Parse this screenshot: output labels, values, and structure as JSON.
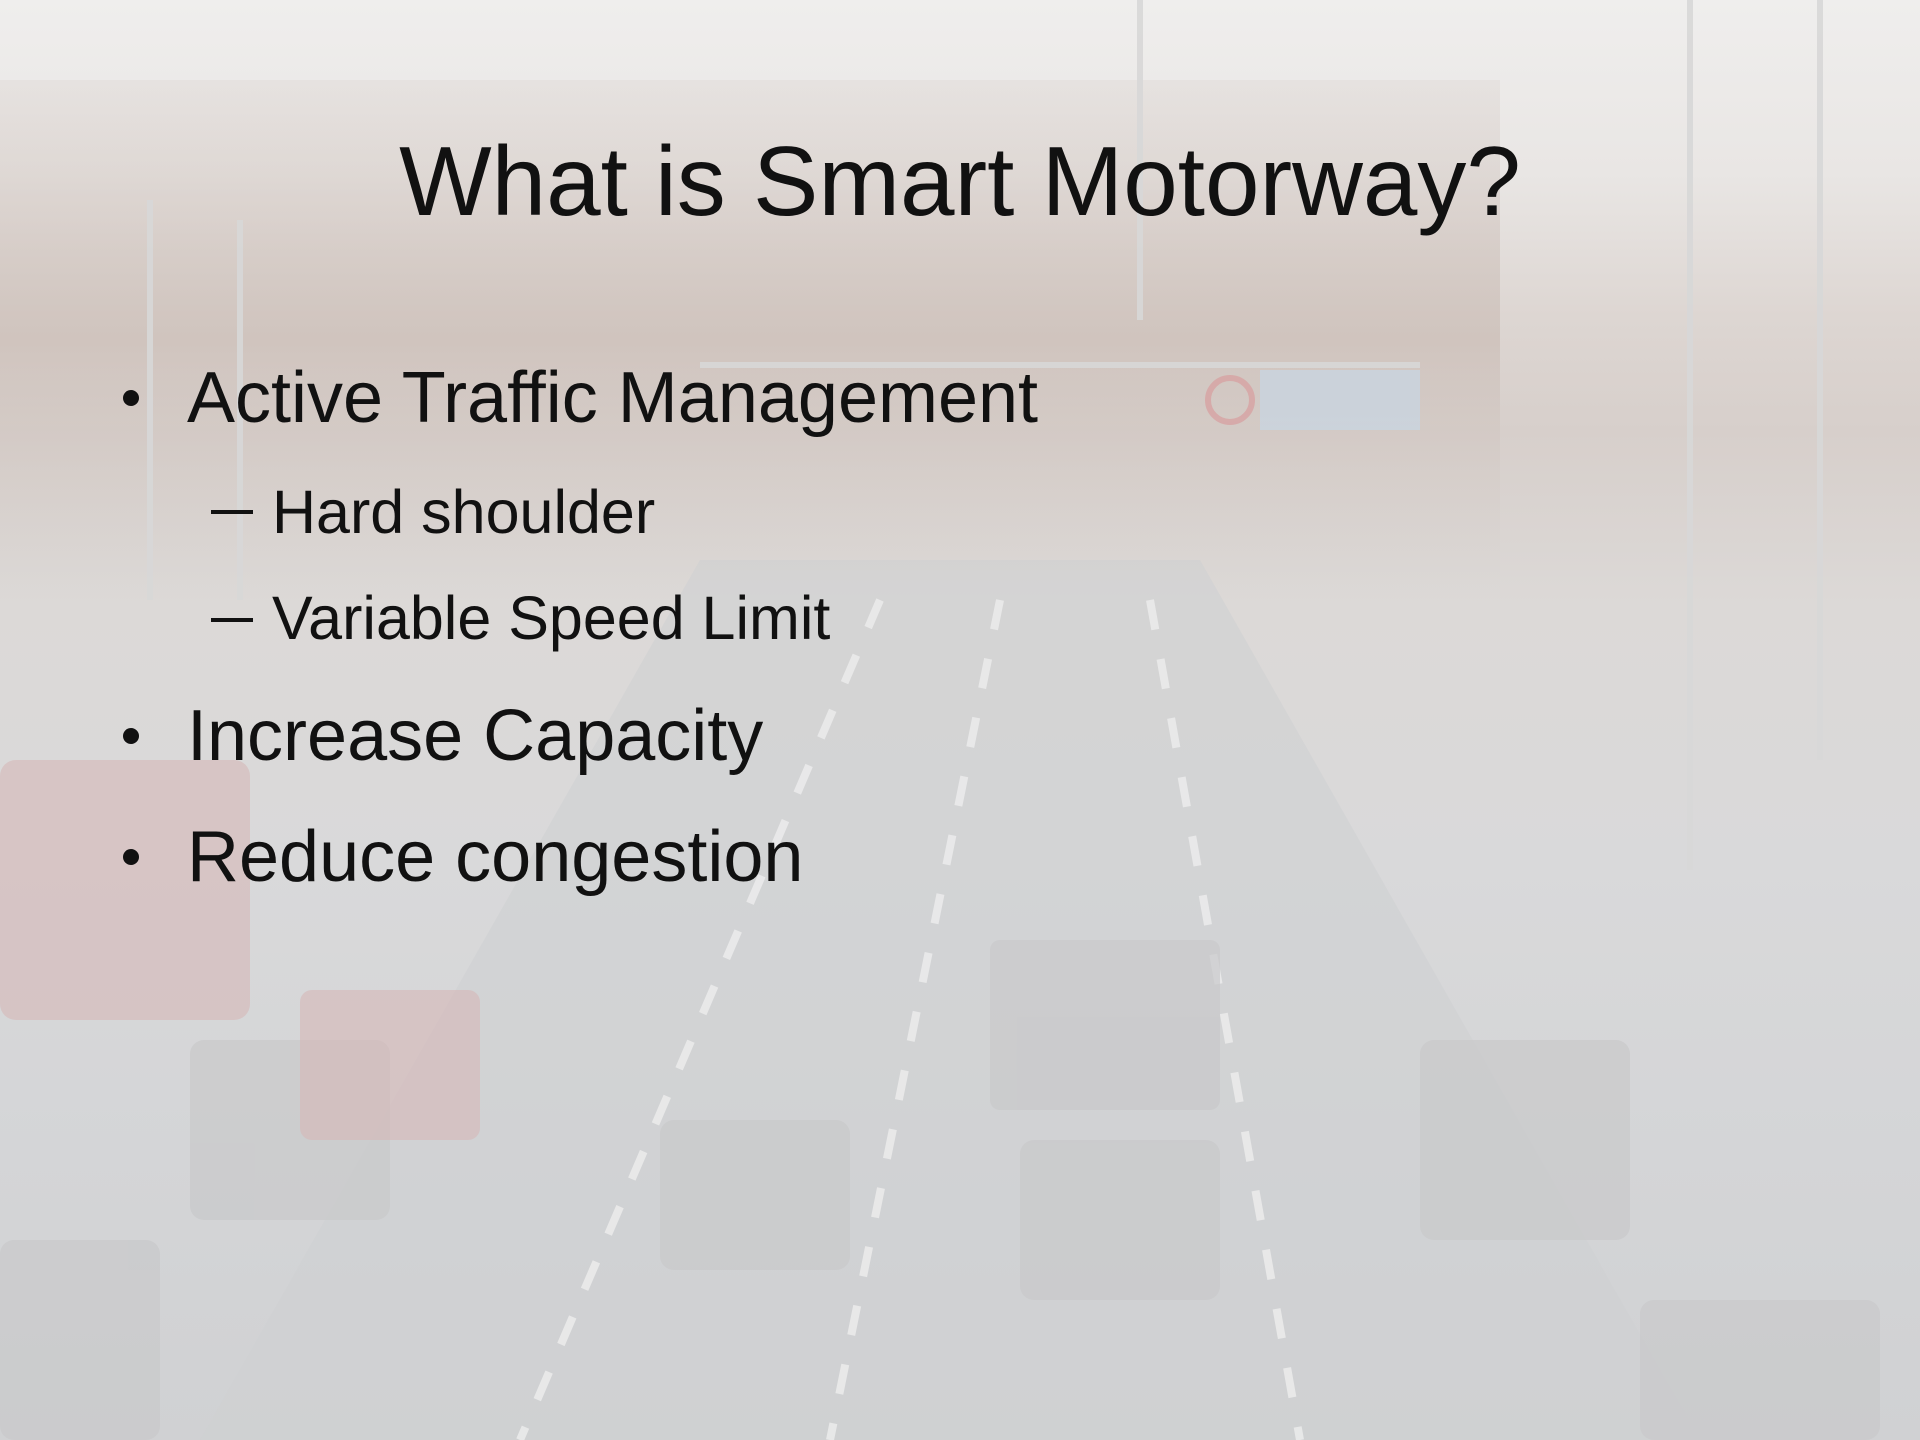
{
  "title": "What is Smart Motorway?",
  "bullets": [
    {
      "text": "Active Traffic Management",
      "sub": [
        "Hard shoulder",
        "Variable Speed Limit"
      ]
    },
    {
      "text": "Increase Capacity"
    },
    {
      "text": "Reduce congestion"
    }
  ]
}
